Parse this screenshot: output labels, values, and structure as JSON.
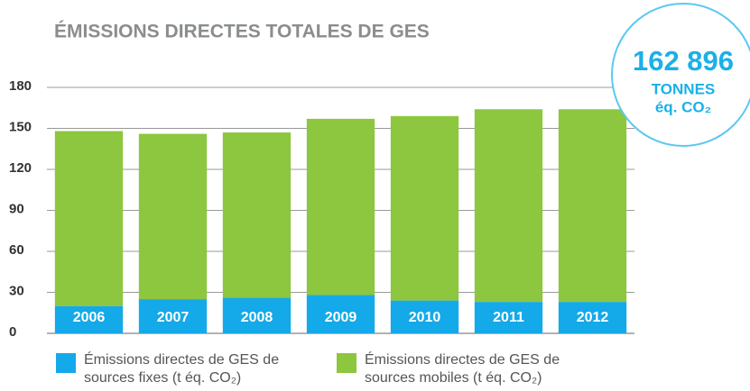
{
  "chart_data": {
    "type": "stacked_bar",
    "title": "ÉMISSIONS DIRECTES TOTALES DE GES",
    "categories": [
      "2006",
      "2007",
      "2008",
      "2009",
      "2010",
      "2011",
      "2012"
    ],
    "series": [
      {
        "name": "Émissions directes de GES de sources fixes (t éq. CO₂)",
        "color": "#14a9e8",
        "values": [
          20,
          25,
          26,
          28,
          24,
          23,
          23
        ]
      },
      {
        "name": "Émissions directes de GES de sources mobiles (t éq. CO₂)",
        "color": "#8dc63f",
        "values": [
          128,
          121,
          121,
          129,
          135,
          141,
          141
        ]
      }
    ],
    "ylim": [
      0,
      180
    ],
    "yticks": [
      0,
      30,
      60,
      90,
      120,
      150,
      180
    ],
    "grid": true,
    "callout": {
      "value": "162 896",
      "unit": "TONNES",
      "sub": "éq. CO₂"
    }
  }
}
